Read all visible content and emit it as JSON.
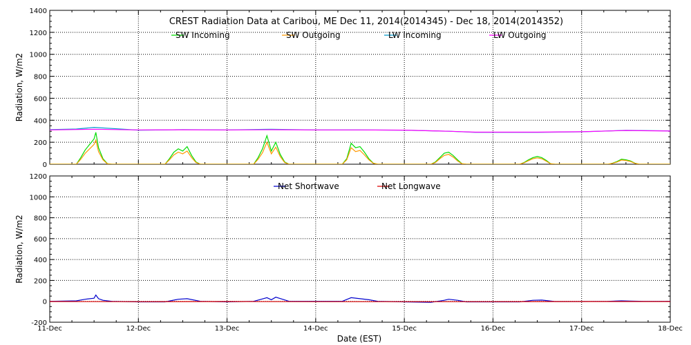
{
  "chart_data": [
    {
      "type": "line",
      "title": "CREST Radiation Data at Caribou, ME   Dec 11, 2014(2014345) - Dec 18, 2014(2014352)",
      "ylabel": "Radiation, W/m2",
      "xlabel": "",
      "xlim": [
        0,
        7
      ],
      "ylim": [
        0,
        1400
      ],
      "y_ticks": [
        0,
        200,
        400,
        600,
        800,
        1000,
        1200,
        1400
      ],
      "x_tick_labels": [],
      "grid": true,
      "legend": "top-center",
      "series": [
        {
          "name": "SW Incoming",
          "color": "#00dd00",
          "x": [
            0.0,
            0.3,
            0.35,
            0.4,
            0.45,
            0.5,
            0.52,
            0.55,
            0.6,
            0.65,
            0.7,
            1.3,
            1.35,
            1.4,
            1.45,
            1.5,
            1.55,
            1.6,
            1.65,
            1.7,
            2.3,
            2.35,
            2.4,
            2.45,
            2.5,
            2.55,
            2.6,
            2.65,
            2.7,
            3.3,
            3.35,
            3.4,
            3.45,
            3.5,
            3.55,
            3.6,
            3.65,
            3.7,
            4.3,
            4.35,
            4.4,
            4.45,
            4.5,
            4.55,
            4.6,
            4.65,
            4.7,
            5.3,
            5.35,
            5.4,
            5.45,
            5.5,
            5.55,
            5.6,
            5.65,
            5.7,
            6.3,
            6.35,
            6.4,
            6.45,
            6.5,
            6.55,
            6.6,
            6.65,
            6.7,
            7.0
          ],
          "values": [
            0,
            0,
            60,
            130,
            180,
            230,
            290,
            150,
            50,
            5,
            0,
            0,
            50,
            110,
            140,
            120,
            160,
            80,
            20,
            0,
            0,
            60,
            140,
            260,
            120,
            200,
            90,
            20,
            0,
            0,
            50,
            190,
            150,
            160,
            110,
            50,
            10,
            0,
            0,
            20,
            60,
            100,
            110,
            80,
            40,
            5,
            0,
            0,
            15,
            40,
            60,
            70,
            60,
            35,
            5,
            0,
            0,
            10,
            25,
            45,
            40,
            30,
            10,
            0,
            0,
            0
          ]
        },
        {
          "name": "SW Outgoing",
          "color": "#ff9900",
          "x": [
            0.0,
            0.3,
            0.35,
            0.4,
            0.45,
            0.5,
            0.52,
            0.55,
            0.6,
            0.65,
            0.7,
            1.3,
            1.35,
            1.4,
            1.45,
            1.5,
            1.55,
            1.6,
            1.65,
            1.7,
            2.3,
            2.35,
            2.4,
            2.45,
            2.5,
            2.55,
            2.6,
            2.65,
            2.7,
            3.3,
            3.35,
            3.4,
            3.45,
            3.5,
            3.55,
            3.6,
            3.65,
            3.7,
            4.3,
            4.35,
            4.4,
            4.45,
            4.5,
            4.55,
            4.6,
            4.65,
            4.7,
            5.3,
            5.35,
            5.4,
            5.45,
            5.5,
            5.55,
            5.6,
            5.65,
            5.7,
            6.3,
            6.35,
            6.4,
            6.45,
            6.5,
            6.55,
            6.6,
            6.65,
            6.7,
            7.0
          ],
          "values": [
            0,
            0,
            45,
            100,
            140,
            180,
            220,
            115,
            40,
            3,
            0,
            0,
            40,
            85,
            110,
            95,
            120,
            60,
            15,
            0,
            0,
            45,
            105,
            200,
            95,
            155,
            70,
            15,
            0,
            0,
            40,
            150,
            115,
            125,
            85,
            40,
            8,
            0,
            0,
            15,
            50,
            80,
            90,
            65,
            30,
            4,
            0,
            0,
            12,
            32,
            50,
            58,
            50,
            28,
            4,
            0,
            0,
            8,
            20,
            38,
            34,
            25,
            8,
            0,
            0,
            0
          ]
        },
        {
          "name": "LW Incoming",
          "color": "#0099cc",
          "x": [
            0.0,
            0.3,
            0.5,
            0.7,
            1.0,
            1.3,
            1.5,
            2.0,
            2.5,
            3.0,
            3.5,
            4.0,
            4.5,
            4.8,
            5.0,
            5.5,
            6.0,
            6.5,
            7.0
          ],
          "values": [
            315,
            320,
            335,
            325,
            310,
            312,
            315,
            312,
            318,
            312,
            312,
            310,
            300,
            290,
            290,
            290,
            295,
            308,
            303
          ]
        },
        {
          "name": "LW Outgoing",
          "color": "#ff00ff",
          "x": [
            0.0,
            0.5,
            1.0,
            1.5,
            2.0,
            2.5,
            3.0,
            3.5,
            4.0,
            4.5,
            4.8,
            5.0,
            5.5,
            6.0,
            6.5,
            7.0
          ],
          "values": [
            312,
            318,
            312,
            313,
            312,
            314,
            312,
            312,
            310,
            300,
            292,
            292,
            292,
            296,
            307,
            302
          ]
        }
      ]
    },
    {
      "type": "line",
      "title": "",
      "ylabel": "Radiation, W/m2",
      "xlabel": "Date (EST)",
      "xlim": [
        0,
        7
      ],
      "ylim": [
        -200,
        1200
      ],
      "y_ticks": [
        -200,
        0,
        200,
        400,
        600,
        800,
        1000,
        1200
      ],
      "x_tick_labels": [
        "11-Dec",
        "12-Dec",
        "13-Dec",
        "14-Dec",
        "15-Dec",
        "16-Dec",
        "17-Dec",
        "18-Dec"
      ],
      "grid": true,
      "legend": "top-center",
      "series": [
        {
          "name": "Net Shortwave",
          "color": "#0000cc",
          "x": [
            0.0,
            0.3,
            0.4,
            0.5,
            0.52,
            0.55,
            0.6,
            0.7,
            1.0,
            1.3,
            1.45,
            1.55,
            1.7,
            2.0,
            2.3,
            2.45,
            2.5,
            2.55,
            2.7,
            3.0,
            3.3,
            3.4,
            3.5,
            3.6,
            3.7,
            4.0,
            4.3,
            4.45,
            4.5,
            4.6,
            4.7,
            5.0,
            5.3,
            5.45,
            5.55,
            5.7,
            6.0,
            6.3,
            6.45,
            6.55,
            6.7,
            7.0
          ],
          "values": [
            0,
            5,
            20,
            30,
            60,
            25,
            10,
            0,
            -5,
            -5,
            20,
            25,
            0,
            -5,
            0,
            35,
            15,
            40,
            0,
            0,
            0,
            35,
            25,
            15,
            0,
            -5,
            -10,
            10,
            20,
            10,
            -5,
            -5,
            -5,
            10,
            12,
            -2,
            -2,
            0,
            5,
            3,
            0,
            0
          ]
        },
        {
          "name": "Net Longwave",
          "color": "#dd0000",
          "x": [
            0.0,
            1.0,
            2.0,
            3.0,
            4.0,
            5.0,
            6.0,
            7.0
          ],
          "values": [
            -2,
            -3,
            -2,
            -3,
            -3,
            -3,
            -2,
            -2
          ]
        }
      ]
    }
  ]
}
